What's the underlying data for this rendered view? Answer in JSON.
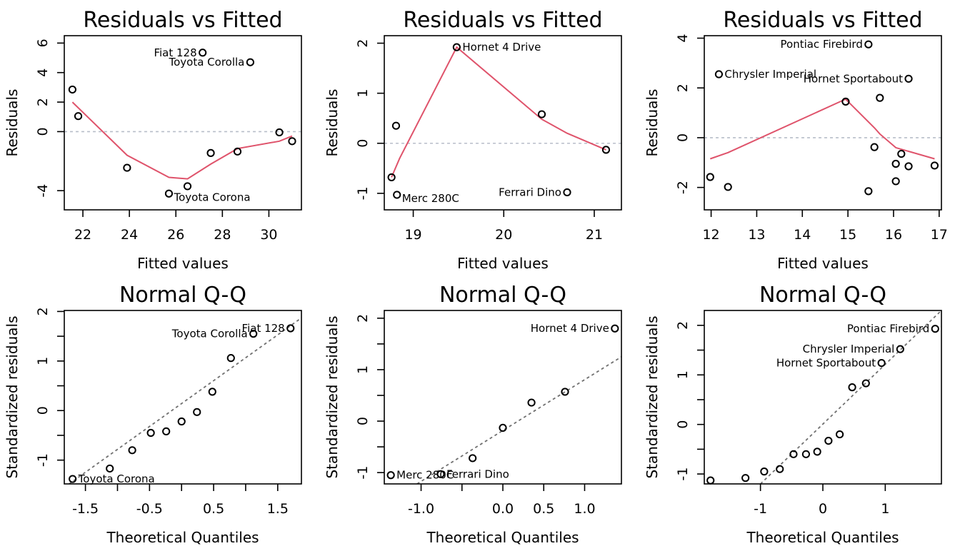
{
  "chart_data": [
    {
      "type": "scatter",
      "panel": "resid",
      "title": "Residuals vs Fitted",
      "xlabel": "Fitted values",
      "ylabel": "Residuals",
      "xlim": [
        21.2,
        31.4
      ],
      "ylim": [
        -5.3,
        6.5
      ],
      "xticks": [
        22,
        24,
        26,
        28,
        30
      ],
      "yticks": [
        -4,
        0,
        2,
        4,
        6
      ],
      "points": [
        {
          "x": 21.55,
          "y": 2.85
        },
        {
          "x": 21.8,
          "y": 1.05
        },
        {
          "x": 23.9,
          "y": -2.45
        },
        {
          "x": 25.7,
          "y": -4.2,
          "label": "Toyota Corona",
          "anchor": "right-below"
        },
        {
          "x": 26.5,
          "y": -3.7
        },
        {
          "x": 27.5,
          "y": -1.45
        },
        {
          "x": 28.65,
          "y": -1.35
        },
        {
          "x": 27.15,
          "y": 5.35,
          "label": "Fiat 128",
          "anchor": "left"
        },
        {
          "x": 29.2,
          "y": 4.7,
          "label": "Toyota Corolla",
          "anchor": "left"
        },
        {
          "x": 30.45,
          "y": -0.05
        },
        {
          "x": 31.0,
          "y": -0.65
        }
      ],
      "smooth": [
        [
          21.55,
          2.0
        ],
        [
          23.9,
          -1.6
        ],
        [
          25.7,
          -3.1
        ],
        [
          26.5,
          -3.2
        ],
        [
          27.5,
          -2.2
        ],
        [
          28.65,
          -1.15
        ],
        [
          30.45,
          -0.65
        ],
        [
          31.0,
          -0.3
        ]
      ]
    },
    {
      "type": "scatter",
      "panel": "resid",
      "title": "Residuals vs Fitted",
      "xlabel": "Fitted values",
      "ylabel": "Residuals",
      "xlim": [
        18.68,
        21.3
      ],
      "ylim": [
        -1.33,
        2.15
      ],
      "xticks": [
        19.0,
        20.0,
        21.0
      ],
      "yticks": [
        -1.0,
        0.0,
        1.0,
        2.0
      ],
      "points": [
        {
          "x": 18.76,
          "y": -0.68
        },
        {
          "x": 18.81,
          "y": 0.35
        },
        {
          "x": 18.82,
          "y": -1.03,
          "label": "Merc 280C",
          "anchor": "right-below"
        },
        {
          "x": 19.48,
          "y": 1.92,
          "label": "Hornet 4 Drive",
          "anchor": "right"
        },
        {
          "x": 20.42,
          "y": 0.58
        },
        {
          "x": 20.7,
          "y": -0.98,
          "label": "Ferrari Dino",
          "anchor": "left"
        },
        {
          "x": 21.13,
          "y": -0.13
        }
      ],
      "smooth": [
        [
          18.76,
          -0.68
        ],
        [
          18.85,
          -0.3
        ],
        [
          19.48,
          1.92
        ],
        [
          20.42,
          0.48
        ],
        [
          20.7,
          0.2
        ],
        [
          21.13,
          -0.13
        ]
      ]
    },
    {
      "type": "scatter",
      "panel": "resid",
      "title": "Residuals vs Fitted",
      "xlabel": "Fitted values",
      "ylabel": "Residuals",
      "xlim": [
        11.85,
        17.05
      ],
      "ylim": [
        -2.9,
        4.1
      ],
      "xticks": [
        12,
        13,
        14,
        15,
        16,
        17
      ],
      "yticks": [
        -2,
        0,
        2,
        4
      ],
      "points": [
        {
          "x": 11.98,
          "y": -1.58
        },
        {
          "x": 12.17,
          "y": 2.55,
          "label": "Chrysler Imperial",
          "anchor": "right"
        },
        {
          "x": 12.37,
          "y": -1.98
        },
        {
          "x": 14.95,
          "y": 1.45
        },
        {
          "x": 15.45,
          "y": 3.75,
          "label": "Pontiac Firebird",
          "anchor": "left"
        },
        {
          "x": 15.45,
          "y": -2.15
        },
        {
          "x": 15.58,
          "y": -0.38
        },
        {
          "x": 15.7,
          "y": 1.6
        },
        {
          "x": 16.05,
          "y": -1.05
        },
        {
          "x": 16.05,
          "y": -1.75
        },
        {
          "x": 16.17,
          "y": -0.65
        },
        {
          "x": 16.33,
          "y": -1.15
        },
        {
          "x": 16.33,
          "y": 2.37,
          "label": "Hornet Sportabout",
          "anchor": "left"
        },
        {
          "x": 16.9,
          "y": -1.12
        }
      ],
      "smooth": [
        [
          11.98,
          -0.85
        ],
        [
          12.37,
          -0.6
        ],
        [
          14.95,
          1.55
        ],
        [
          15.58,
          0.4
        ],
        [
          15.7,
          0.15
        ],
        [
          16.05,
          -0.4
        ],
        [
          16.9,
          -0.85
        ]
      ]
    },
    {
      "type": "scatter",
      "panel": "qq",
      "title": "Normal Q-Q",
      "xlabel": "Theoretical Quantiles",
      "ylabel": "Standardized residuals",
      "xlim": [
        -1.83,
        1.87
      ],
      "ylim": [
        -1.48,
        2.02
      ],
      "xticks": [
        -1.5,
        -0.5,
        0.5,
        1.5
      ],
      "yticks": [
        -1.0,
        0.0,
        1.0,
        2.0
      ],
      "minor_xticks": [
        -1.0,
        0.0,
        1.0
      ],
      "minor_yticks": [
        -0.5,
        0.5,
        1.5
      ],
      "points": [
        {
          "x": -1.7,
          "y": -1.38,
          "label": "Toyota Corona",
          "anchor": "right"
        },
        {
          "x": -1.12,
          "y": -1.17
        },
        {
          "x": -0.77,
          "y": -0.8
        },
        {
          "x": -0.48,
          "y": -0.45
        },
        {
          "x": -0.24,
          "y": -0.42
        },
        {
          "x": 0.0,
          "y": -0.22
        },
        {
          "x": 0.24,
          "y": -0.03
        },
        {
          "x": 0.48,
          "y": 0.38
        },
        {
          "x": 0.77,
          "y": 1.06
        },
        {
          "x": 1.12,
          "y": 1.55,
          "label": "Toyota Corolla",
          "anchor": "left"
        },
        {
          "x": 1.7,
          "y": 1.66,
          "label": "Fiat 128",
          "anchor": "left"
        }
      ],
      "qqline": [
        [
          -1.83,
          -1.55
        ],
        [
          1.87,
          1.87
        ]
      ]
    },
    {
      "type": "scatter",
      "panel": "qq",
      "title": "Normal Q-Q",
      "xlabel": "Theoretical Quantiles",
      "ylabel": "Standardized residuals",
      "xlim": [
        -1.45,
        1.45
      ],
      "ylim": [
        -1.22,
        2.15
      ],
      "xticks": [
        -1.0,
        0.0,
        0.5,
        1.0
      ],
      "yticks": [
        -1.0,
        0.0,
        1.0,
        2.0
      ],
      "minor_xticks": [
        -0.5
      ],
      "minor_yticks": [
        -0.5,
        0.5,
        1.5
      ],
      "points": [
        {
          "x": -1.37,
          "y": -1.05,
          "label": "Merc 280C",
          "anchor": "right"
        },
        {
          "x": -0.76,
          "y": -1.03,
          "label": "Ferrari Dino",
          "anchor": "right"
        },
        {
          "x": -0.37,
          "y": -0.72
        },
        {
          "x": 0.0,
          "y": -0.13
        },
        {
          "x": 0.35,
          "y": 0.36
        },
        {
          "x": 0.76,
          "y": 0.57
        },
        {
          "x": 1.37,
          "y": 1.8,
          "label": "Hornet 4 Drive",
          "anchor": "left"
        }
      ],
      "qqline": [
        [
          -1.05,
          -1.22
        ],
        [
          1.45,
          1.25
        ]
      ]
    },
    {
      "type": "scatter",
      "panel": "qq",
      "title": "Normal Q-Q",
      "xlabel": "Theoretical Quantiles",
      "ylabel": "Standardized residuals",
      "xlim": [
        -1.9,
        1.9
      ],
      "ylim": [
        -1.2,
        2.3
      ],
      "xticks": [
        -1,
        0,
        1
      ],
      "yticks": [
        -1.0,
        0.0,
        1.0,
        2.0
      ],
      "minor_yticks": [
        -0.5,
        0.5,
        1.5
      ],
      "points": [
        {
          "x": -1.8,
          "y": -1.13
        },
        {
          "x": -1.24,
          "y": -1.08
        },
        {
          "x": -0.94,
          "y": -0.95
        },
        {
          "x": -0.69,
          "y": -0.9
        },
        {
          "x": -0.47,
          "y": -0.6
        },
        {
          "x": -0.27,
          "y": -0.6
        },
        {
          "x": -0.09,
          "y": -0.55
        },
        {
          "x": 0.09,
          "y": -0.33
        },
        {
          "x": 0.27,
          "y": -0.2
        },
        {
          "x": 0.47,
          "y": 0.75
        },
        {
          "x": 0.69,
          "y": 0.83
        },
        {
          "x": 0.94,
          "y": 1.24,
          "label": "Hornet Sportabout",
          "anchor": "left"
        },
        {
          "x": 1.24,
          "y": 1.52,
          "label": "Chrysler Imperial",
          "anchor": "left"
        },
        {
          "x": 1.8,
          "y": 1.93,
          "label": "Pontiac Firebird",
          "anchor": "left"
        }
      ],
      "qqline": [
        [
          -1.0,
          -1.2
        ],
        [
          1.9,
          2.3
        ]
      ]
    }
  ]
}
